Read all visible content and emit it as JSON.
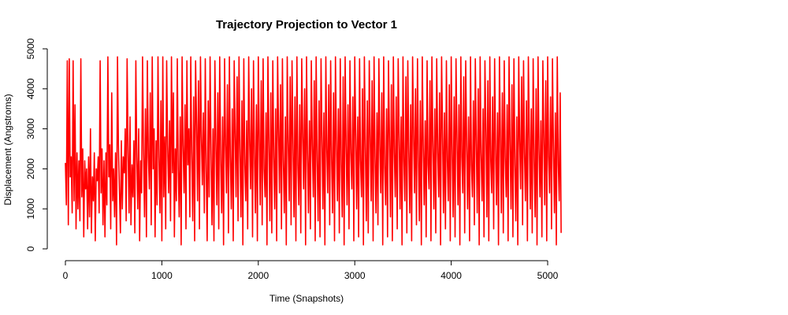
{
  "chart_data": {
    "type": "line",
    "title": "Trajectory Projection to Vector 1",
    "xlabel": "Time (Snapshots)",
    "ylabel": "Displacement (Angstroms)",
    "xlim": [
      0,
      5000
    ],
    "ylim": [
      0,
      5000
    ],
    "x_ticks": [
      "0",
      "1000",
      "2000",
      "3000",
      "4000",
      "5000"
    ],
    "y_ticks": [
      "0",
      "1000",
      "2000",
      "3000",
      "4000",
      "5000"
    ],
    "grid": false,
    "color": "#ff0000",
    "x_start": 0,
    "x_step": 10,
    "series": [
      {
        "values": [
          2150,
          1100,
          4700,
          600,
          4750,
          1800,
          2300,
          900,
          4700,
          1200,
          3600,
          500,
          2400,
          1000,
          2200,
          700,
          4750,
          1300,
          2500,
          300,
          2200,
          1500,
          2000,
          500,
          2300,
          800,
          3000,
          400,
          1800,
          1200,
          2400,
          200,
          2000,
          1700,
          2300,
          900,
          4700,
          1400,
          2500,
          600,
          2200,
          300,
          2400,
          1100,
          4800,
          1800,
          2600,
          500,
          3900,
          1200,
          2000,
          800,
          2400,
          100,
          4800,
          2600,
          1500,
          400,
          2700,
          1000,
          2300,
          1900,
          3000,
          700,
          4750,
          2400,
          900,
          3300,
          600,
          2100,
          1300,
          2700,
          400,
          4700,
          2300,
          1000,
          3000,
          200,
          2200,
          1400,
          4800,
          2500,
          800,
          3500,
          300,
          4700,
          2300,
          1500,
          3900,
          600,
          4800,
          2000,
          3000,
          300,
          2700,
          1100,
          4800,
          2300,
          900,
          3700,
          200,
          4800,
          1300,
          2800,
          500,
          4700,
          2600,
          1400,
          3200,
          700,
          4800,
          1900,
          3900,
          300,
          2500,
          1200,
          4750,
          2000,
          800,
          3300,
          100,
          4800,
          2600,
          1400,
          3600,
          500,
          4700,
          2100,
          3000,
          800,
          4800,
          2400,
          700,
          3800,
          200,
          4700,
          3100,
          1200,
          4200,
          500,
          4800,
          2800,
          1600,
          3400,
          900,
          4750,
          2000,
          200,
          3700,
          1300,
          4800,
          2400,
          600,
          3000,
          200,
          4700,
          2700,
          1100,
          3900,
          500,
          4800,
          2200,
          900,
          3300,
          100,
          4750,
          2600,
          1400,
          4100,
          400,
          4800,
          2300,
          1000,
          3500,
          200,
          4700,
          2900,
          1300,
          4300,
          700,
          4800,
          2500,
          800,
          3700,
          100,
          4750,
          2100,
          1200,
          3200,
          500,
          4800,
          2700,
          1500,
          4000,
          300,
          4700,
          2400,
          900,
          3600,
          200,
          4800,
          2800,
          1100,
          4200,
          600,
          4750,
          2000,
          1300,
          3400,
          100,
          4800,
          2600,
          700,
          3900,
          400,
          4700,
          2300,
          1000,
          3500,
          200,
          4800,
          3000,
          1400,
          4100,
          500,
          4750,
          2200,
          900,
          3300,
          100,
          4800,
          2700,
          1200,
          4300,
          600,
          4700,
          2500,
          800,
          3800,
          200,
          4800,
          2100,
          1100,
          3600,
          400,
          4750,
          2900,
          1500,
          4000,
          100,
          4800,
          2400,
          900,
          3200,
          500,
          4700,
          2600,
          1300,
          4200,
          200,
          4800,
          2200,
          700,
          3700,
          300,
          4750,
          2800,
          1000,
          3400,
          100,
          4800,
          2500,
          1400,
          4100,
          600,
          4700,
          2300,
          900,
          3900,
          200,
          4800,
          2700,
          1200,
          3500,
          400,
          4750,
          2100,
          800,
          4300,
          100,
          4800,
          2600,
          1100,
          3600,
          500,
          4700,
          2400,
          1500,
          3800,
          200,
          4800,
          2900,
          1000,
          3300,
          300,
          4750,
          2200,
          1300,
          4000,
          100,
          4800,
          2500,
          700,
          3700,
          400,
          4700,
          2800,
          1200,
          4200,
          200,
          4800,
          2300,
          900,
          3400,
          600,
          4750,
          2600,
          1400,
          3900,
          100,
          4800,
          2100,
          1100,
          3500,
          300,
          4700,
          2700,
          800,
          4100,
          200,
          4800,
          2400,
          1300,
          3800,
          500,
          4750,
          2900,
          1000,
          3300,
          100,
          4800,
          2200,
          1200,
          4300,
          400,
          4700,
          2500,
          900,
          3600,
          200,
          4800,
          2800,
          1400,
          4000,
          600,
          4750,
          2300,
          700,
          3700,
          100,
          4800,
          2600,
          1100,
          3200,
          300,
          4700,
          2100,
          1500,
          4200,
          200,
          4800,
          2700,
          1000,
          3500,
          400,
          4750,
          2400,
          1300,
          3900,
          100,
          4800,
          2900,
          900,
          3400,
          500,
          4700,
          2200,
          1200,
          4100,
          200,
          4800,
          2500,
          800,
          3800,
          300,
          4750,
          2800,
          1100,
          3600,
          100,
          4800,
          2300,
          1400,
          4300,
          400,
          4700,
          2600,
          1000,
          3300,
          200,
          4800,
          2100,
          1300,
          3700,
          600,
          4750,
          2700,
          900,
          4000,
          100,
          4800,
          2400,
          1200,
          3500,
          300,
          4700,
          2900,
          800,
          4200,
          200,
          4800,
          2200,
          1400,
          3800,
          500,
          4750,
          2500,
          1100,
          3400,
          100,
          4800,
          2800,
          900,
          3900,
          400,
          4700,
          2300,
          1300,
          3600,
          200,
          4800,
          2600,
          1000,
          4100,
          300,
          4750,
          2100,
          700,
          3300,
          100,
          4800,
          2700,
          1500,
          4300,
          600,
          4700,
          2400,
          1200,
          3700,
          200,
          4800,
          2900,
          1000,
          3500,
          400,
          4750,
          2200,
          800,
          4000,
          100,
          4800,
          2500,
          1300,
          3200,
          300,
          4700,
          2800,
          1100,
          4200,
          200,
          4800,
          2300,
          1400,
          3800,
          500,
          4750,
          2600,
          900,
          3400,
          100,
          4800,
          2100,
          1200,
          3900,
          400
        ]
      }
    ]
  }
}
